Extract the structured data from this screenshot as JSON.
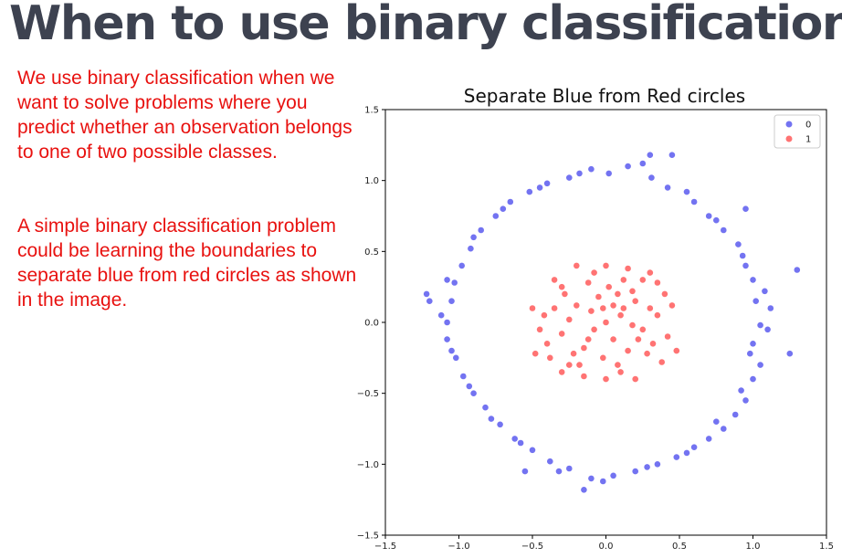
{
  "header": {
    "title": "When to use binary classification?"
  },
  "body": {
    "paragraph_1": "We use binary classification when we want to solve problems where you predict whether an observation belongs to one of two possible classes.",
    "paragraph_2": "A simple binary classification problem could be learning the boundaries to separate blue from red circles as shown in the image."
  },
  "chart_data": {
    "type": "scatter",
    "title": "Separate Blue from Red circles",
    "xlabel": "",
    "ylabel": "",
    "xlim": [
      -1.5,
      1.5
    ],
    "ylim": [
      -1.5,
      1.5
    ],
    "xticks": [
      "−1.5",
      "−1.0",
      "−0.5",
      "0.0",
      "0.5",
      "1.0",
      "1.5"
    ],
    "yticks": [
      "1.5",
      "1.0",
      "0.5",
      "0.0",
      "−0.5",
      "−1.0",
      "−1.5"
    ],
    "legend": {
      "placement": "top-right",
      "entries": [
        "0",
        "1"
      ]
    },
    "grid": false,
    "series": [
      {
        "name": "0",
        "color": "#0000e6",
        "points": [
          [
            0.02,
            1.05
          ],
          [
            0.31,
            1.02
          ],
          [
            0.6,
            0.85
          ],
          [
            0.8,
            0.65
          ],
          [
            0.95,
            0.4
          ],
          [
            1.02,
            0.15
          ],
          [
            1.1,
            -0.05
          ],
          [
            1.05,
            -0.3
          ],
          [
            0.95,
            -0.55
          ],
          [
            0.8,
            -0.75
          ],
          [
            0.6,
            -0.88
          ],
          [
            0.35,
            -1.0
          ],
          [
            0.05,
            -1.08
          ],
          [
            -0.25,
            -1.03
          ],
          [
            -0.5,
            -0.9
          ],
          [
            -0.72,
            -0.72
          ],
          [
            -0.9,
            -0.5
          ],
          [
            -1.02,
            -0.25
          ],
          [
            -1.08,
            0.0
          ],
          [
            -1.03,
            0.28
          ],
          [
            -0.92,
            0.52
          ],
          [
            -0.75,
            0.75
          ],
          [
            -0.52,
            0.92
          ],
          [
            -0.25,
            1.02
          ],
          [
            0.15,
            1.1
          ],
          [
            0.42,
            0.95
          ],
          [
            0.7,
            0.75
          ],
          [
            0.9,
            0.55
          ],
          [
            1.0,
            0.3
          ],
          [
            1.12,
            0.1
          ],
          [
            1.0,
            -0.15
          ],
          [
            1.0,
            -0.4
          ],
          [
            0.88,
            -0.65
          ],
          [
            0.7,
            -0.82
          ],
          [
            0.48,
            -0.95
          ],
          [
            0.2,
            -1.05
          ],
          [
            -0.1,
            -1.1
          ],
          [
            -0.38,
            -0.98
          ],
          [
            -0.62,
            -0.82
          ],
          [
            -0.82,
            -0.6
          ],
          [
            -0.97,
            -0.38
          ],
          [
            -1.08,
            -0.12
          ],
          [
            -1.05,
            0.15
          ],
          [
            -0.98,
            0.4
          ],
          [
            -0.85,
            0.65
          ],
          [
            -0.65,
            0.85
          ],
          [
            -0.4,
            0.98
          ],
          [
            -0.1,
            1.08
          ],
          [
            0.25,
            1.12
          ],
          [
            0.55,
            0.92
          ],
          [
            0.75,
            0.72
          ],
          [
            0.93,
            0.47
          ],
          [
            1.08,
            0.22
          ],
          [
            1.05,
            -0.02
          ],
          [
            0.98,
            -0.22
          ],
          [
            0.92,
            -0.48
          ],
          [
            0.75,
            -0.7
          ],
          [
            0.55,
            -0.92
          ],
          [
            0.28,
            -1.02
          ],
          [
            -0.02,
            -1.12
          ],
          [
            -0.32,
            -1.05
          ],
          [
            -0.58,
            -0.85
          ],
          [
            -0.78,
            -0.68
          ],
          [
            -0.93,
            -0.45
          ],
          [
            -1.05,
            -0.2
          ],
          [
            -1.12,
            0.05
          ],
          [
            -1.08,
            0.3
          ],
          [
            -0.9,
            0.6
          ],
          [
            -0.7,
            0.8
          ],
          [
            -0.45,
            0.95
          ],
          [
            -0.18,
            1.05
          ],
          [
            1.3,
            0.37
          ],
          [
            1.25,
            -0.22
          ],
          [
            -1.2,
            0.15
          ],
          [
            -1.22,
            0.2
          ],
          [
            0.3,
            1.18
          ],
          [
            0.45,
            1.18
          ],
          [
            -0.15,
            -1.18
          ],
          [
            0.95,
            0.8
          ],
          [
            -0.55,
            -1.05
          ]
        ]
      },
      {
        "name": "1",
        "color": "#ff0000",
        "points": [
          [
            0.0,
            0.0
          ],
          [
            0.1,
            0.05
          ],
          [
            -0.1,
            0.08
          ],
          [
            0.05,
            -0.12
          ],
          [
            -0.08,
            -0.05
          ],
          [
            0.2,
            0.15
          ],
          [
            -0.2,
            0.12
          ],
          [
            0.15,
            -0.2
          ],
          [
            -0.15,
            -0.18
          ],
          [
            0.25,
            -0.05
          ],
          [
            -0.25,
            0.02
          ],
          [
            0.02,
            0.25
          ],
          [
            -0.02,
            -0.25
          ],
          [
            0.3,
            0.1
          ],
          [
            -0.3,
            -0.08
          ],
          [
            0.12,
            0.3
          ],
          [
            -0.12,
            0.28
          ],
          [
            0.08,
            -0.3
          ],
          [
            -0.28,
            0.2
          ],
          [
            0.28,
            -0.22
          ],
          [
            0.35,
            0.05
          ],
          [
            -0.35,
            0.1
          ],
          [
            0.18,
            0.22
          ],
          [
            -0.22,
            -0.22
          ],
          [
            0.05,
            0.12
          ],
          [
            -0.05,
            0.18
          ],
          [
            0.22,
            -0.12
          ],
          [
            -0.18,
            -0.3
          ],
          [
            0.32,
            -0.15
          ],
          [
            -0.3,
            0.25
          ],
          [
            0.4,
            0.2
          ],
          [
            -0.4,
            -0.15
          ],
          [
            0.1,
            -0.35
          ],
          [
            -0.08,
            0.35
          ],
          [
            0.25,
            0.3
          ],
          [
            -0.25,
            -0.3
          ],
          [
            0.38,
            -0.28
          ],
          [
            -0.35,
            0.3
          ],
          [
            0.15,
            0.38
          ],
          [
            -0.15,
            -0.38
          ],
          [
            0.42,
            -0.1
          ],
          [
            -0.42,
            0.05
          ],
          [
            0.0,
            0.4
          ],
          [
            0.0,
            -0.4
          ],
          [
            0.3,
            0.35
          ],
          [
            -0.3,
            -0.35
          ],
          [
            0.45,
            0.12
          ],
          [
            -0.45,
            -0.05
          ],
          [
            0.2,
            -0.4
          ],
          [
            -0.2,
            0.4
          ],
          [
            0.08,
            0.2
          ],
          [
            -0.12,
            -0.12
          ],
          [
            0.18,
            -0.02
          ],
          [
            -0.02,
            0.1
          ],
          [
            0.12,
            0.1
          ],
          [
            -0.38,
            -0.25
          ],
          [
            0.35,
            0.28
          ],
          [
            -0.5,
            0.1
          ],
          [
            0.48,
            -0.2
          ],
          [
            -0.48,
            -0.22
          ]
        ]
      }
    ]
  }
}
